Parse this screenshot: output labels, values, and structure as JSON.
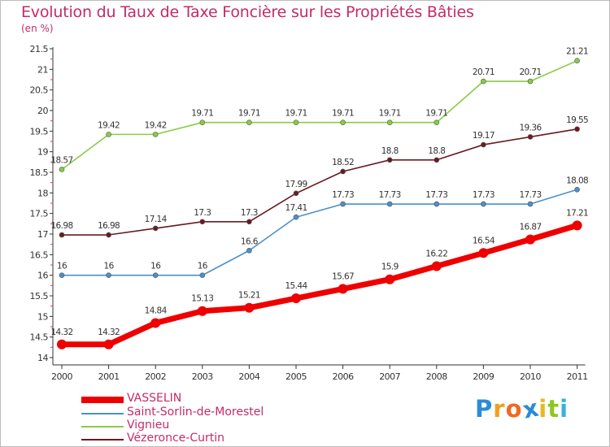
{
  "title": "Evolution du Taux de Taxe Foncière sur les Propriétés Bâties",
  "unit": "(en %)",
  "logo": {
    "letters": [
      "P",
      "r",
      "o",
      "x",
      "i",
      "t",
      "i"
    ],
    "colors": [
      "#2a8bd6",
      "#f0a020",
      "#ee6a20",
      "#2a8bd6",
      "#e8b820",
      "#8cc820",
      "#3cb0e0"
    ]
  },
  "chart_data": {
    "type": "line",
    "title": "Evolution du Taux de Taxe Foncière sur les Propriétés Bâties",
    "ylabel": "(en %)",
    "ylim": [
      14,
      21.5
    ],
    "grid": false,
    "legend": "bottom-left",
    "x": [
      "2000",
      "2001",
      "2002",
      "2003",
      "2004",
      "2005",
      "2006",
      "2007",
      "2008",
      "2009",
      "2010",
      "2011"
    ],
    "yticks": [
      "14",
      "14.5",
      "15",
      "15.5",
      "16",
      "16.5",
      "17",
      "17.5",
      "18",
      "18.5",
      "19",
      "19.5",
      "20",
      "20.5",
      "21",
      "21.5"
    ],
    "series": [
      {
        "name": "VASSELIN",
        "color": "#ee0000",
        "values": [
          14.32,
          14.32,
          14.84,
          15.13,
          15.21,
          15.44,
          15.67,
          15.9,
          16.22,
          16.54,
          16.87,
          17.21
        ],
        "labels": [
          "14.32",
          "14.32",
          "14.84",
          "15.13",
          "15.21",
          "15.44",
          "15.67",
          "15.9",
          "16.22",
          "16.54",
          "16.87",
          "17.21"
        ]
      },
      {
        "name": "Saint-Sorlin-de-Morestel",
        "color": "#4a90cc",
        "values": [
          16,
          16,
          16,
          16,
          16.6,
          17.41,
          17.73,
          17.73,
          17.73,
          17.73,
          17.73,
          18.08
        ],
        "labels": [
          "16",
          "16",
          "16",
          "16",
          "16.6",
          "17.41",
          "17.73",
          "17.73",
          "17.73",
          "17.73",
          "17.73",
          "18.08"
        ]
      },
      {
        "name": "Vignieu",
        "color": "#88cc44",
        "values": [
          18.57,
          19.42,
          19.42,
          19.71,
          19.71,
          19.71,
          19.71,
          19.71,
          19.71,
          20.71,
          20.71,
          21.21
        ],
        "labels": [
          "18.57",
          "19.42",
          "19.42",
          "19.71",
          "19.71",
          "19.71",
          "19.71",
          "19.71",
          "19.71",
          "20.71",
          "20.71",
          "21.21"
        ]
      },
      {
        "name": "Vézeronce-Curtin",
        "color": "#6a1a22",
        "values": [
          16.98,
          16.98,
          17.14,
          17.3,
          17.3,
          17.99,
          18.52,
          18.8,
          18.8,
          19.17,
          19.36,
          19.55
        ],
        "labels": [
          "16.98",
          "16.98",
          "17.14",
          "17.3",
          "17.3",
          "17.99",
          "18.52",
          "18.8",
          "18.8",
          "19.17",
          "19.36",
          "19.55"
        ]
      }
    ]
  }
}
